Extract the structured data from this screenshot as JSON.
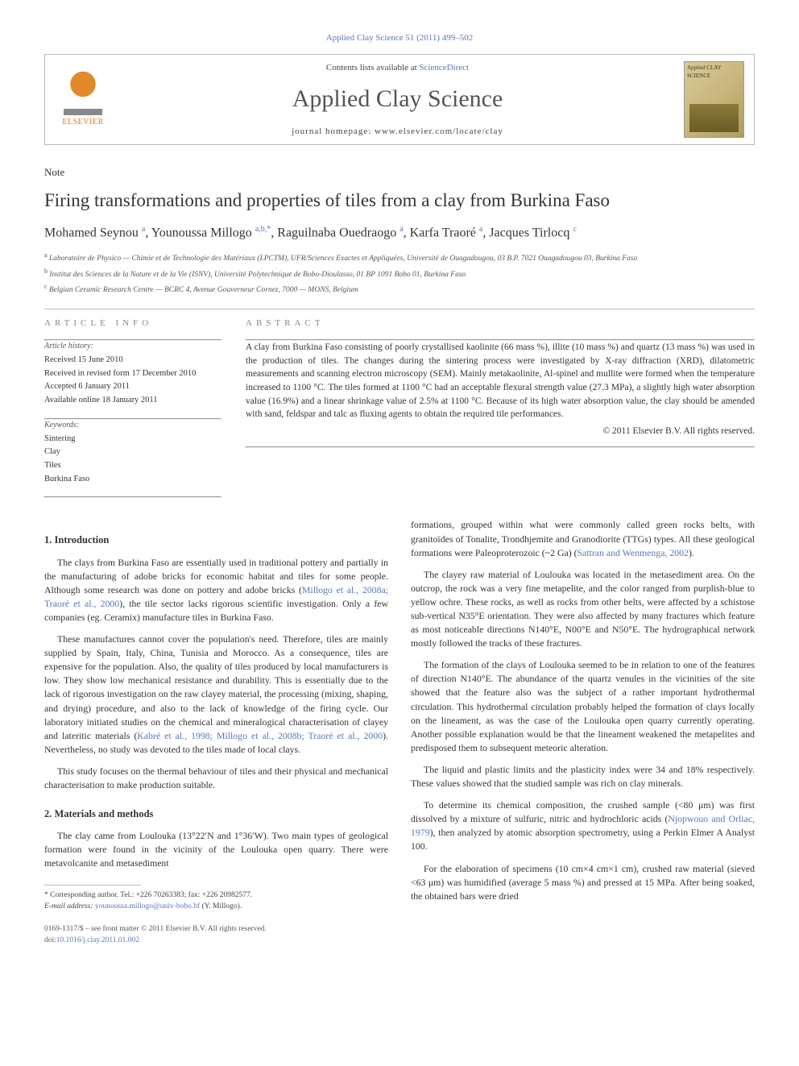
{
  "citation_line": "Applied Clay Science 51 (2011) 499–502",
  "masthead": {
    "contents_prefix": "Contents lists available at ",
    "contents_link": "ScienceDirect",
    "journal_name": "Applied Clay Science",
    "homepage_prefix": "journal homepage: ",
    "homepage_url": "www.elsevier.com/locate/clay",
    "publisher_label": "ELSEVIER",
    "cover_label": "Applied CLAY SCIENCE"
  },
  "note_label": "Note",
  "title": "Firing transformations and properties of tiles from a clay from Burkina Faso",
  "authors_html": "Mohamed Seynou <sup class='sup-link'>a</sup>, Younoussa Millogo <sup class='sup-link'>a,b,</sup><sup class='sup-link'>*</sup>, Raguilnaba Ouedraogo <sup class='sup-link'>a</sup>, Karfa Traoré <sup class='sup-link'>a</sup>, Jacques Tirlocq <sup class='sup-link'>c</sup>",
  "affiliations": {
    "a": "Laboratoire de Physico — Chimie et de Technologie des Matériaux (LPCTM), UFR/Sciences Exactes et Appliquées, Université de Ouagadougou, 03 B.P. 7021 Ouagadougou 03, Burkina Faso",
    "b": "Institut des Sciences de la Nature et de la Vie (ISNV), Université Polytechnique de Bobo-Dioulasso, 01 BP 1091 Bobo 01, Burkina Faso",
    "c": "Belgian Ceramic Research Centre — BCRC 4, Avenue Gouverneur Cornez, 7000 — MONS, Belgium"
  },
  "article_info": {
    "header": "ARTICLE INFO",
    "history_label": "Article history:",
    "received": "Received 15 June 2010",
    "revised": "Received in revised form 17 December 2010",
    "accepted": "Accepted 6 January 2011",
    "online": "Available online 18 January 2011",
    "keywords_label": "Keywords:",
    "keywords": [
      "Sintering",
      "Clay",
      "Tiles",
      "Burkina Faso"
    ]
  },
  "abstract": {
    "header": "ABSTRACT",
    "text": "A clay from Burkina Faso consisting of poorly crystallised kaolinite (66 mass %), illite (10 mass %) and quartz (13 mass %) was used in the production of tiles. The changes during the sintering process were investigated by X-ray diffraction (XRD), dilatometric measurements and scanning electron microscopy (SEM). Mainly metakaolinite, Al-spinel and mullite were formed when the temperature increased to 1100 °C. The tiles formed at 1100 °C had an acceptable flexural strength value (27.3 MPa), a slightly high water absorption value (16.9%) and a linear shrinkage value of 2.5% at 1100 °C. Because of its high water absorption value, the clay should be amended with sand, feldspar and talc as fluxing agents to obtain the required tile performances.",
    "copyright": "© 2011 Elsevier B.V. All rights reserved."
  },
  "sections": {
    "intro_heading": "1. Introduction",
    "methods_heading": "2. Materials and methods"
  },
  "body": {
    "col1": {
      "p1_a": "The clays from Burkina Faso are essentially used in traditional pottery and partially in the manufacturing of adobe bricks for economic habitat and tiles for some people. Although some research was done on pottery and adobe bricks (",
      "p1_cite1": "Millogo et al., 2008a; Traoré et al., 2000",
      "p1_b": "), the tile sector lacks rigorous scientific investigation. Only a few companies (eg. Ceramix) manufacture tiles in Burkina Faso.",
      "p2_a": "These manufactures cannot cover the population's need. Therefore, tiles are mainly supplied by Spain, Italy, China, Tunisia and Morocco. As a consequence, tiles are expensive for the population. Also, the quality of tiles produced by local manufacturers is low. They show low mechanical resistance and durability. This is essentially due to the lack of rigorous investigation on the raw clayey material, the processing (mixing, shaping, and drying) procedure, and also to the lack of knowledge of the firing cycle. Our laboratory initiated studies on the chemical and mineralogical characterisation of clayey and lateritic materials (",
      "p2_cite1": "Kabré et al., 1998; Millogo et al., 2008b; Traoré et al., 2000",
      "p2_b": "). Nevertheless, no study was devoted to the tiles made of local clays.",
      "p3": "This study focuses on the thermal behaviour of tiles and their physical and mechanical characterisation to make production suitable.",
      "p4": "The clay came from Loulouka (13°22′N and 1°36′W). Two main types of geological formation were found in the vicinity of the Loulouka open quarry. There were metavolcanite and metasediment"
    },
    "col2": {
      "p1_a": "formations, grouped within what were commonly called green rocks belts, with granitoïdes of Tonalite, Trondhjemite and Granodiorite (TTGs) types. All these geological formations were Paleoproterozoic (~2 Ga) (",
      "p1_cite1": "Sattran and Wenmenga, 2002",
      "p1_b": ").",
      "p2": "The clayey raw material of Loulouka was located in the metasediment area. On the outcrop, the rock was a very fine metapelite, and the color ranged from purplish-blue to yellow ochre. These rocks, as well as rocks from other belts, were affected by a schistose sub-vertical N35°E orientation. They were also affected by many fractures which feature as most noticeable directions N140°E, N00°E and N50°E. The hydrographical network mostly followed the tracks of these fractures.",
      "p3": "The formation of the clays of Loulouka seemed to be in relation to one of the features of direction N140°E. The abundance of the quartz venules in the vicinities of the site showed that the feature also was the subject of a rather important hydrothermal circulation. This hydrothermal circulation probably helped the formation of clays locally on the lineament, as was the case of the Loulouka open quarry currently operating. Another possible explanation would be that the lineament weakened the metapelites and predisposed them to subsequent meteoric alteration.",
      "p4": "The liquid and plastic limits and the plasticity index were 34 and 18% respectively. These values showed that the studied sample was rich on clay minerals.",
      "p5_a": "To determine its chemical composition, the crushed sample (<80 μm) was first dissolved by a mixture of sulfuric, nitric and hydrochloric acids (",
      "p5_cite1": "Njopwouo and Orliac, 1979",
      "p5_b": "), then analyzed by atomic absorption spectrometry, using a Perkin Elmer A Analyst 100.",
      "p6": "For the elaboration of specimens (10 cm×4 cm×1 cm), crushed raw material (sieved <63 μm) was humidified (average 5 mass %) and pressed at 15 MPa. After being soaked, the obtained bars were dried"
    }
  },
  "footnote": {
    "corr": "Corresponding author. Tel.: +226 70263383; fax: +226 20982577.",
    "email_label": "E-mail address:",
    "email": "younoussa.millogo@univ-bobo.bf",
    "email_suffix": "(Y. Millogo)."
  },
  "bottom": {
    "line1": "0169-1317/$ – see front matter © 2011 Elsevier B.V. All rights reserved.",
    "doi_prefix": "doi:",
    "doi": "10.1016/j.clay.2011.01.002"
  },
  "colors": {
    "link": "#5878b8",
    "text": "#333333",
    "muted": "#888888",
    "rule": "#bbbbbb",
    "elsevier_orange": "#e77817"
  }
}
